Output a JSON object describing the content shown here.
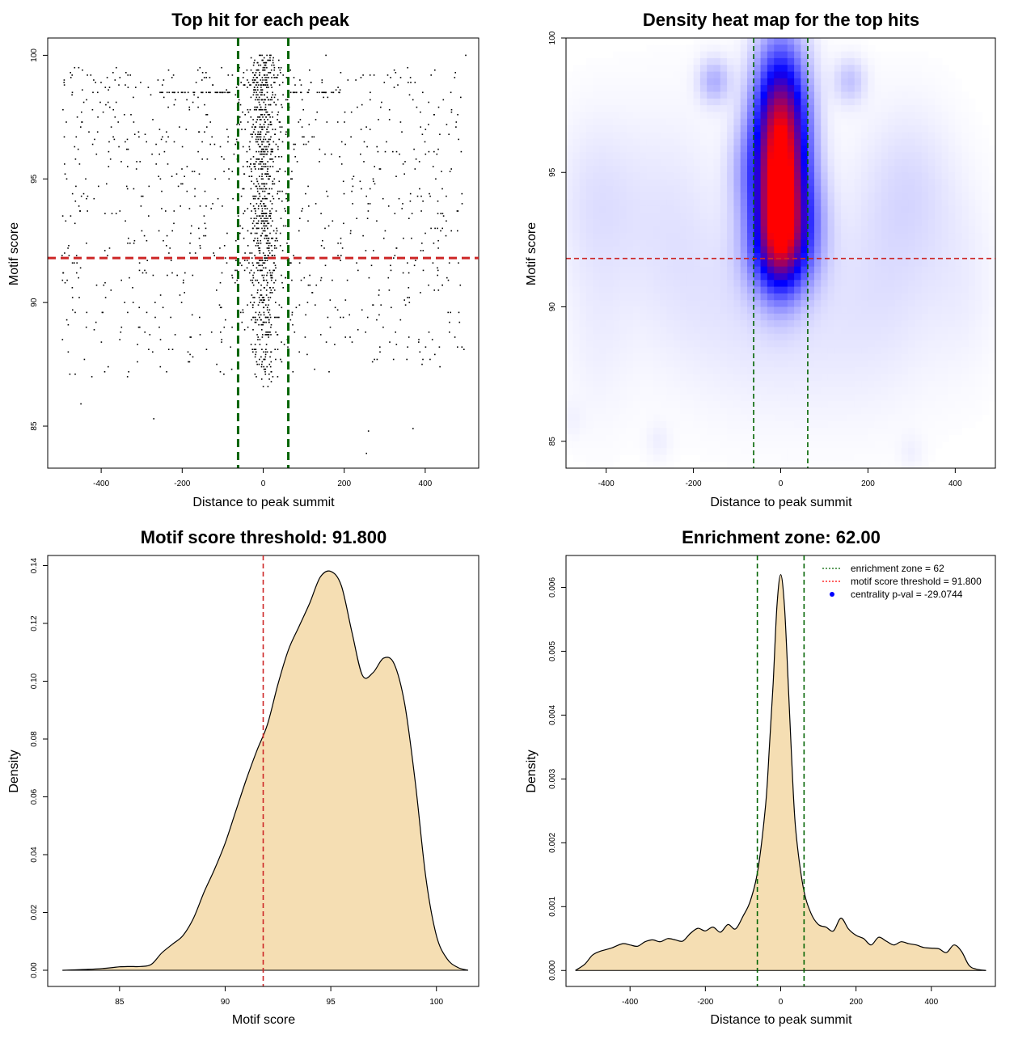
{
  "chart_data": [
    {
      "id": "scatter",
      "type": "scatter",
      "title": "Top hit for each peak",
      "xlabel": "Distance to peak summit",
      "ylabel": "Motif score",
      "xlim": [
        -532,
        532
      ],
      "ylim": [
        83.3,
        100.7
      ],
      "xticks": [
        -400,
        -200,
        0,
        200,
        400
      ],
      "yticks": [
        85,
        90,
        95,
        100
      ],
      "reference_lines": {
        "vertical": [
          -62,
          62
        ],
        "horizontal": 91.8
      },
      "point_clusters": [
        {
          "x_center": 0,
          "x_spread": 28,
          "y_range": [
            86.5,
            100
          ],
          "count": 700
        },
        {
          "x_center": 0,
          "x_spread": 60,
          "y_range": [
            88.5,
            99.5
          ],
          "count": 220
        },
        {
          "x_center": 0,
          "x_spread": 500,
          "y_range": [
            87,
            99.5
          ],
          "count": 900,
          "uniform": true
        },
        {
          "x_range": [
            -270,
            -60
          ],
          "y": 98.5,
          "count": 40,
          "row": true
        },
        {
          "x_range": [
            60,
            190
          ],
          "y": 98.5,
          "count": 22,
          "row": true
        }
      ],
      "labeled_outliers": [
        {
          "x": -450,
          "y": 85.9
        },
        {
          "x": -270,
          "y": 85.3
        },
        {
          "x": 260,
          "y": 84.8
        },
        {
          "x": 255,
          "y": 83.9
        },
        {
          "x": 370,
          "y": 84.9
        },
        {
          "x": -335,
          "y": 87.0
        },
        {
          "x": 20,
          "y": 86.8
        },
        {
          "x": 500,
          "y": 100.0
        },
        {
          "x": 155,
          "y": 100.0
        }
      ]
    },
    {
      "id": "heatmap",
      "type": "heatmap",
      "title": "Density heat map for the top hits",
      "xlabel": "Distance to peak summit",
      "ylabel": "Motif score",
      "xlim": [
        -492,
        492
      ],
      "ylim": [
        84,
        100
      ],
      "xticks": [
        -400,
        -200,
        0,
        200,
        400
      ],
      "yticks": [
        85,
        90,
        95,
        100
      ],
      "reference_lines": {
        "vertical": [
          -62,
          62
        ],
        "horizontal": 91.8
      },
      "color_scale": [
        "#ffffff",
        "#0000ff",
        "#ff0000"
      ],
      "density_blobs": [
        {
          "x": 0,
          "y": 96.3,
          "sx": 42,
          "sy": 2.2,
          "w": 1.0
        },
        {
          "x": 0,
          "y": 93.2,
          "sx": 38,
          "sy": 1.6,
          "w": 0.7
        },
        {
          "x": 0,
          "y": 92.0,
          "sx": 55,
          "sy": 1.2,
          "w": 0.3
        },
        {
          "x": -152,
          "y": 98.4,
          "sx": 26,
          "sy": 0.6,
          "w": 0.16
        },
        {
          "x": 158,
          "y": 98.4,
          "sx": 26,
          "sy": 0.6,
          "w": 0.12
        },
        {
          "x": -80,
          "y": 95.0,
          "sx": 30,
          "sy": 1.3,
          "w": 0.12
        },
        {
          "x": 75,
          "y": 93.5,
          "sx": 30,
          "sy": 1.3,
          "w": 0.1
        },
        {
          "x": -420,
          "y": 94.0,
          "sx": 70,
          "sy": 2.2,
          "w": 0.06
        },
        {
          "x": 300,
          "y": 94.6,
          "sx": 70,
          "sy": 2.0,
          "w": 0.05
        },
        {
          "x": -250,
          "y": 93.0,
          "sx": 80,
          "sy": 3.0,
          "w": 0.05
        },
        {
          "x": 250,
          "y": 92.0,
          "sx": 90,
          "sy": 3.0,
          "w": 0.05
        },
        {
          "x": -100,
          "y": 90.0,
          "sx": 120,
          "sy": 2.5,
          "w": 0.04
        },
        {
          "x": 100,
          "y": 89.0,
          "sx": 140,
          "sy": 2.5,
          "w": 0.035
        },
        {
          "x": -420,
          "y": 89.0,
          "sx": 60,
          "sy": 2.5,
          "w": 0.03
        },
        {
          "x": 420,
          "y": 91.0,
          "sx": 60,
          "sy": 2.5,
          "w": 0.03
        },
        {
          "x": -280,
          "y": 85.0,
          "sx": 20,
          "sy": 0.5,
          "w": 0.03
        },
        {
          "x": 300,
          "y": 84.6,
          "sx": 20,
          "sy": 0.5,
          "w": 0.025
        },
        {
          "x": -480,
          "y": 85.8,
          "sx": 20,
          "sy": 0.5,
          "w": 0.02
        }
      ]
    },
    {
      "id": "score-density",
      "type": "area",
      "title": "Motif score threshold: 91.800",
      "xlabel": "Motif score",
      "ylabel": "Density",
      "xlim": [
        81.6,
        102.0
      ],
      "ylim": [
        -0.0056,
        0.1435
      ],
      "xticks": [
        85,
        90,
        95,
        100
      ],
      "yticks": [
        0.0,
        0.02,
        0.04,
        0.06,
        0.08,
        0.1,
        0.12,
        0.14
      ],
      "ytick_labels": [
        "0.00",
        "0.02",
        "0.04",
        "0.06",
        "0.08",
        "0.10",
        "0.12",
        "0.14"
      ],
      "threshold": 91.8,
      "fill": "#f5deb3",
      "x": [
        82.3,
        83.5,
        84.5,
        85.0,
        85.5,
        86.0,
        86.5,
        87.0,
        87.5,
        88.0,
        88.5,
        89.0,
        89.5,
        90.0,
        90.5,
        91.0,
        91.5,
        92.0,
        92.5,
        93.0,
        93.5,
        94.0,
        94.5,
        95.0,
        95.5,
        96.0,
        96.5,
        97.0,
        97.5,
        98.0,
        98.5,
        99.0,
        99.5,
        100.0,
        100.5,
        101.0,
        101.5
      ],
      "y": [
        0.0,
        0.0003,
        0.0008,
        0.0012,
        0.0013,
        0.0013,
        0.002,
        0.006,
        0.009,
        0.012,
        0.018,
        0.027,
        0.035,
        0.044,
        0.055,
        0.066,
        0.076,
        0.085,
        0.099,
        0.111,
        0.119,
        0.127,
        0.136,
        0.138,
        0.133,
        0.117,
        0.102,
        0.103,
        0.108,
        0.106,
        0.092,
        0.065,
        0.032,
        0.012,
        0.004,
        0.001,
        0.0
      ]
    },
    {
      "id": "distance-density",
      "type": "area",
      "title": "Enrichment zone: 62.00",
      "xlabel": "Distance to peak summit",
      "ylabel": "Density",
      "xlim": [
        -570,
        570
      ],
      "ylim": [
        -0.00025,
        0.0065
      ],
      "xticks": [
        -400,
        -200,
        0,
        200,
        400
      ],
      "yticks": [
        0.0,
        0.001,
        0.002,
        0.003,
        0.004,
        0.005,
        0.006
      ],
      "ytick_labels": [
        "0.000",
        "0.001",
        "0.002",
        "0.003",
        "0.004",
        "0.005",
        "0.006"
      ],
      "zone": [
        -62,
        62
      ],
      "fill": "#f5deb3",
      "x": [
        -545,
        -520,
        -500,
        -480,
        -450,
        -420,
        -400,
        -380,
        -360,
        -340,
        -320,
        -300,
        -280,
        -260,
        -240,
        -220,
        -200,
        -180,
        -160,
        -140,
        -120,
        -100,
        -80,
        -60,
        -40,
        -30,
        -20,
        -10,
        0,
        10,
        20,
        30,
        40,
        60,
        80,
        100,
        120,
        140,
        160,
        180,
        200,
        220,
        240,
        260,
        280,
        300,
        320,
        340,
        360,
        380,
        400,
        420,
        440,
        460,
        480,
        500,
        520,
        545
      ],
      "y": [
        0.0,
        0.0001,
        0.00024,
        0.0003,
        0.00035,
        0.00042,
        0.0004,
        0.00038,
        0.00045,
        0.00048,
        0.00045,
        0.0005,
        0.00048,
        0.00046,
        0.00058,
        0.00066,
        0.00062,
        0.00068,
        0.0006,
        0.00072,
        0.00065,
        0.00085,
        0.0011,
        0.0016,
        0.0026,
        0.0035,
        0.0045,
        0.0057,
        0.0062,
        0.0057,
        0.0045,
        0.0032,
        0.0022,
        0.0013,
        0.0009,
        0.00072,
        0.00068,
        0.00062,
        0.00082,
        0.00065,
        0.00055,
        0.0005,
        0.0004,
        0.00052,
        0.00046,
        0.0004,
        0.00045,
        0.00042,
        0.0004,
        0.00036,
        0.00035,
        0.00034,
        0.00028,
        0.0004,
        0.0003,
        8e-05,
        2e-05,
        0.0
      ],
      "legend": [
        {
          "label": "enrichment zone = 62",
          "color": "#006400",
          "symbol": "dotted-line"
        },
        {
          "label": "motif score threshold = 91.800",
          "color": "#ff0000",
          "symbol": "dotted-line"
        },
        {
          "label": "centrality p-val = -29.0744",
          "color": "#0000ff",
          "symbol": "dot"
        }
      ]
    }
  ]
}
